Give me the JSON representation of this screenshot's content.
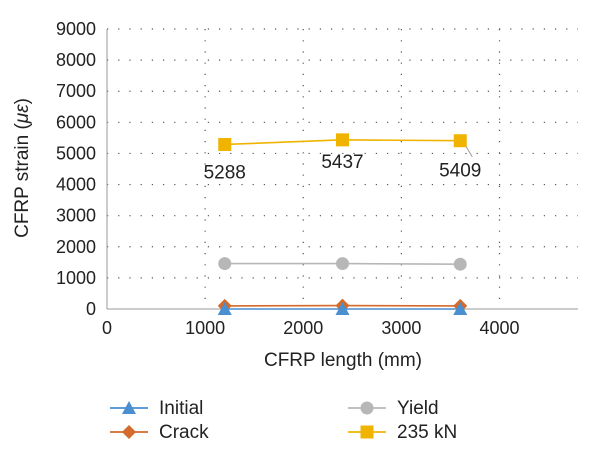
{
  "chart_data": {
    "type": "line",
    "xlabel": "CFRP length (mm)",
    "ylabel_main": "CFRP strain (",
    "ylabel_symbol": "με",
    "ylabel_close": ")",
    "xlim": [
      0,
      4800
    ],
    "ylim": [
      0,
      9000
    ],
    "x_ticks": [
      0,
      1000,
      2000,
      3000,
      4000
    ],
    "y_ticks": [
      0,
      1000,
      2000,
      3000,
      4000,
      5000,
      6000,
      7000,
      8000,
      9000
    ],
    "x": [
      1200,
      2400,
      3600
    ],
    "grid": "dotted",
    "legend_position": "bottom",
    "series": [
      {
        "name": "Initial",
        "values": [
          0,
          0,
          0
        ],
        "color": "#4a8fd0",
        "marker": "triangle"
      },
      {
        "name": "Crack",
        "values": [
          100,
          110,
          100
        ],
        "color": "#d46a2b",
        "marker": "diamond"
      },
      {
        "name": "Yield",
        "values": [
          1460,
          1460,
          1440
        ],
        "color": "#b7b7b7",
        "marker": "circle"
      },
      {
        "name": "235 kN",
        "values": [
          5288,
          5437,
          5409
        ],
        "color": "#f0b400",
        "marker": "square",
        "data_labels": [
          "5288",
          "5437",
          "5409"
        ]
      }
    ]
  }
}
